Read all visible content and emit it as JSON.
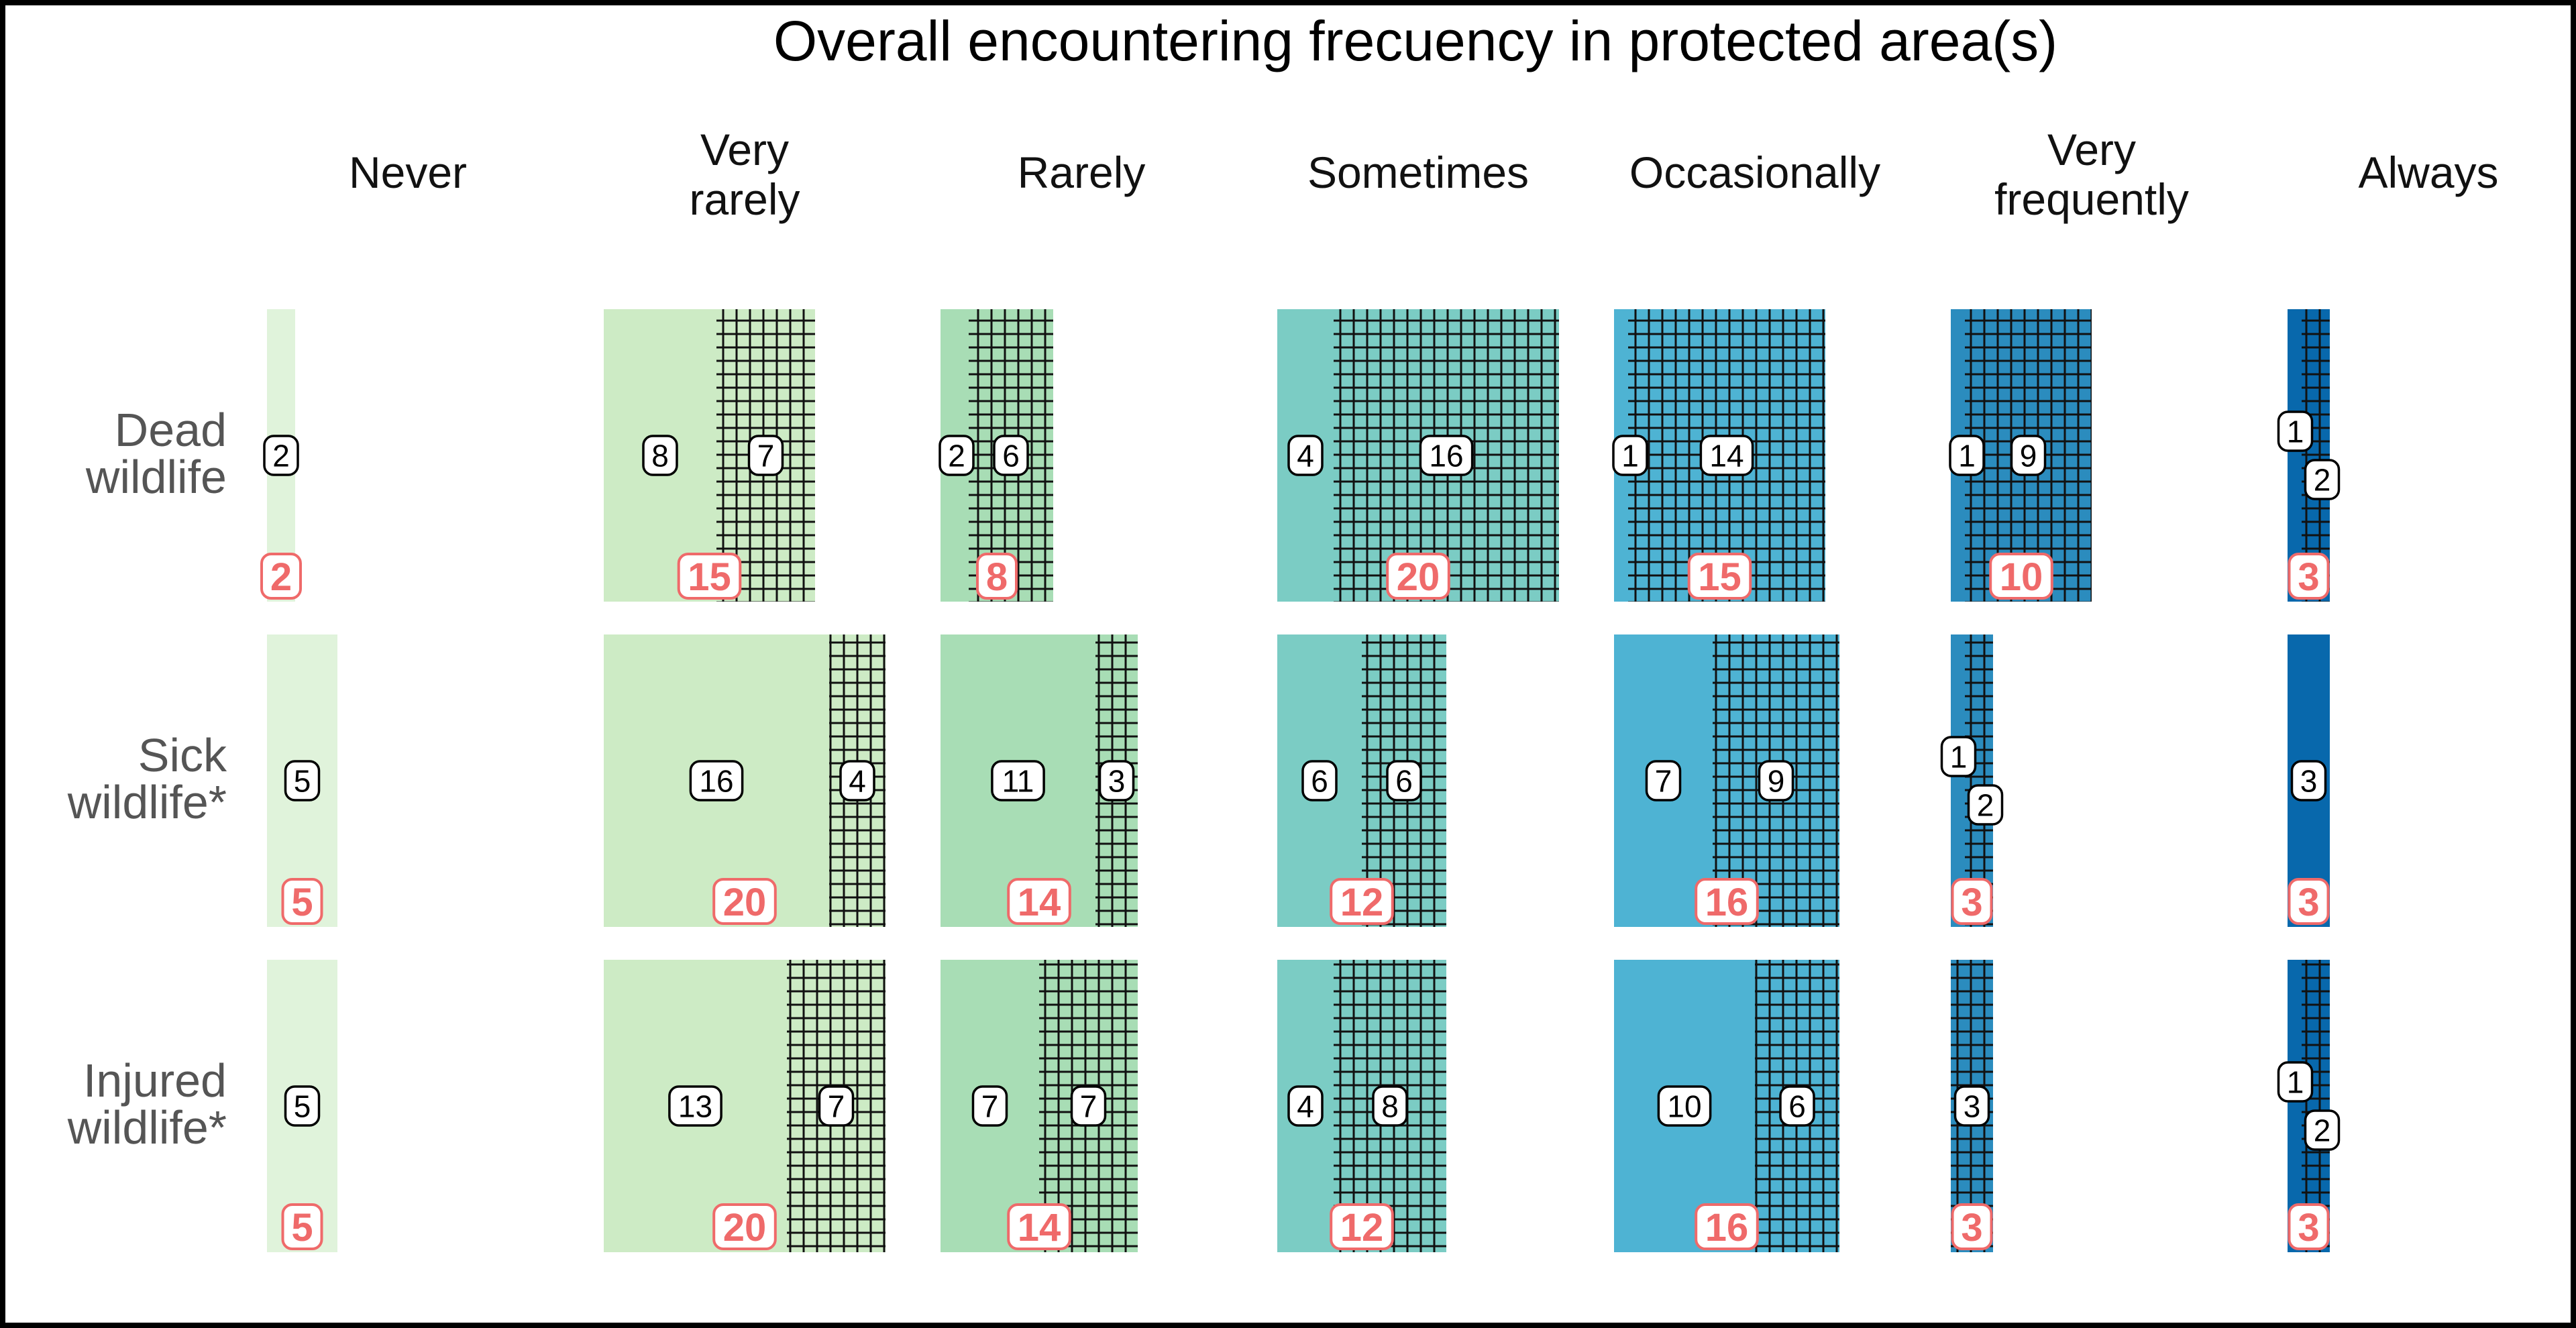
{
  "chart_data": {
    "type": "mosaic",
    "title": "Overall encountering frecuency in protected area(s)",
    "columns": [
      {
        "label": "Never",
        "lines": [
          "Never"
        ],
        "color": "#e0f3db"
      },
      {
        "label": "Very rarely",
        "lines": [
          "Very",
          "rarely"
        ],
        "color": "#cdebc5"
      },
      {
        "label": "Rarely",
        "lines": [
          "Rarely"
        ],
        "color": "#a8ddb5"
      },
      {
        "label": "Sometimes",
        "lines": [
          "Sometimes"
        ],
        "color": "#7bccc4"
      },
      {
        "label": "Occasionally",
        "lines": [
          "Occasionally"
        ],
        "color": "#4eb3d3"
      },
      {
        "label": "Very frequently",
        "lines": [
          "Very",
          "frequently"
        ],
        "color": "#2b8cbe"
      },
      {
        "label": "Always",
        "lines": [
          "Always"
        ],
        "color": "#0868ac"
      }
    ],
    "rows": [
      {
        "label": "Dead wildlife",
        "lines": [
          "Dead",
          "wildlife"
        ]
      },
      {
        "label": "Sick wildlife*",
        "lines": [
          "Sick",
          "wildlife*"
        ]
      },
      {
        "label": "Injured wildlife*",
        "lines": [
          "Injured",
          "wildlife*"
        ]
      }
    ],
    "cells": [
      [
        {
          "total": 2,
          "solid": 2,
          "hatched": 0
        },
        {
          "total": 15,
          "solid": 8,
          "hatched": 7
        },
        {
          "total": 8,
          "solid": 2,
          "hatched": 6
        },
        {
          "total": 20,
          "solid": 4,
          "hatched": 16
        },
        {
          "total": 15,
          "solid": 1,
          "hatched": 14
        },
        {
          "total": 10,
          "solid": 1,
          "hatched": 9
        },
        {
          "total": 3,
          "solid": 1,
          "hatched": 2
        }
      ],
      [
        {
          "total": 5,
          "solid": 5,
          "hatched": 0
        },
        {
          "total": 20,
          "solid": 16,
          "hatched": 4
        },
        {
          "total": 14,
          "solid": 11,
          "hatched": 3
        },
        {
          "total": 12,
          "solid": 6,
          "hatched": 6
        },
        {
          "total": 16,
          "solid": 7,
          "hatched": 9
        },
        {
          "total": 3,
          "solid": 1,
          "hatched": 2
        },
        {
          "total": 3,
          "solid": 3,
          "hatched": 0
        }
      ],
      [
        {
          "total": 5,
          "solid": 5,
          "hatched": 0
        },
        {
          "total": 20,
          "solid": 13,
          "hatched": 7
        },
        {
          "total": 14,
          "solid": 7,
          "hatched": 7
        },
        {
          "total": 12,
          "solid": 4,
          "hatched": 8
        },
        {
          "total": 16,
          "solid": 10,
          "hatched": 6
        },
        {
          "total": 3,
          "solid": 0,
          "hatched": 3
        },
        {
          "total": 3,
          "solid": 1,
          "hatched": 2
        }
      ]
    ],
    "hatch_color": "#111111",
    "total_label_color": "#ef6a6a"
  }
}
